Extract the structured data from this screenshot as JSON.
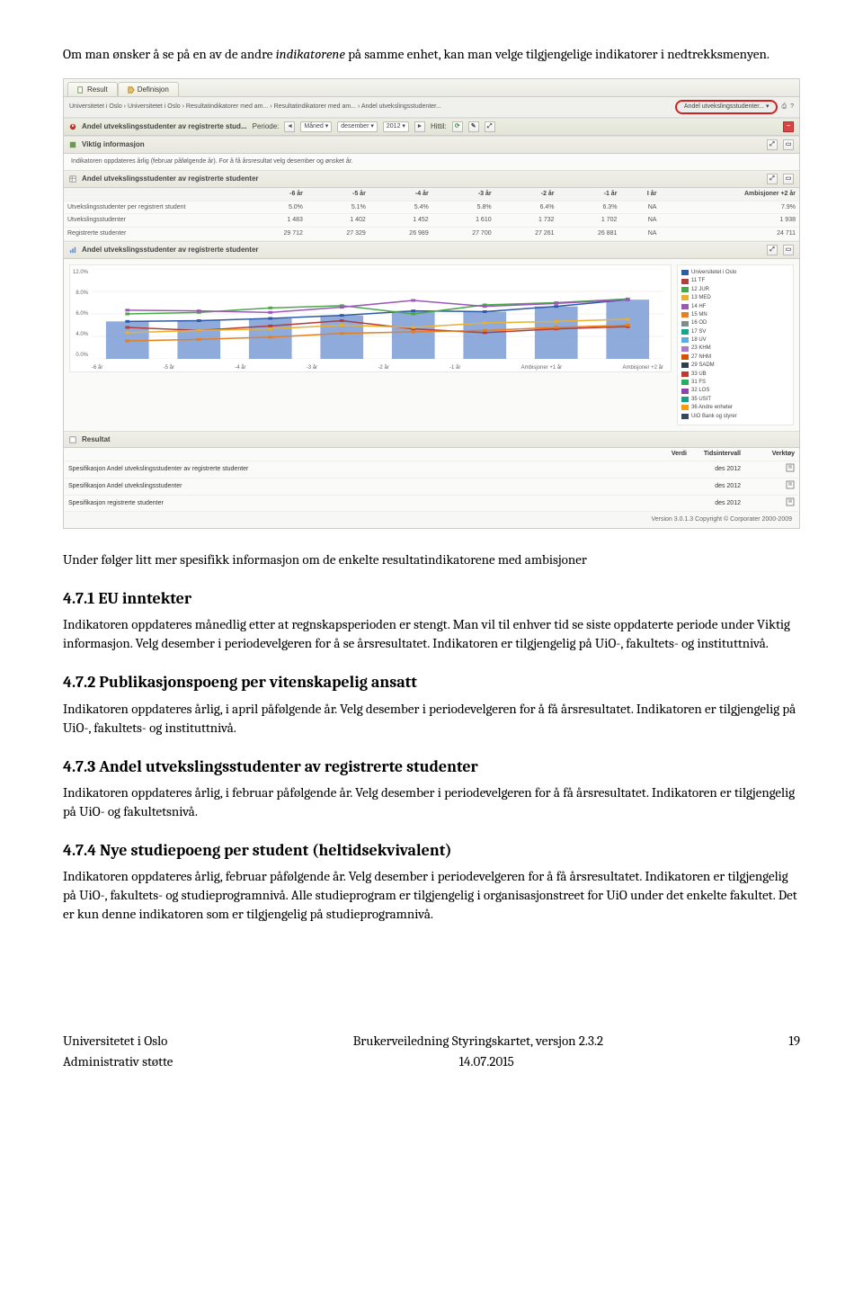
{
  "intro1a": "Om man ønsker å se på en av de andre ",
  "intro1b": "indikatorene",
  "intro1c": " på samme enhet, kan man velge tilgjengelige indikatorer i nedtrekksmenyen.",
  "intro2": "Under følger litt mer spesifikk informasjon om de enkelte resultatindikatorene med ambisjoner",
  "s1": {
    "h": "4.7.1 EU inntekter",
    "b": "Indikatoren oppdateres månedlig etter at regnskapsperioden er stengt. Man vil til enhver tid se siste oppdaterte periode under Viktig informasjon. Velg desember i periodevelgeren for å se årsresultatet. Indikatoren er tilgjengelig på UiO-, fakultets- og instituttnivå."
  },
  "s2": {
    "h": "4.7.2 Publikasjonspoeng per vitenskapelig ansatt",
    "b": "Indikatoren oppdateres årlig, i april påfølgende år. Velg desember i periodevelgeren for å få årsresultatet.  Indikatoren er tilgjengelig på UiO-, fakultets- og instituttnivå."
  },
  "s3": {
    "h": "4.7.3 Andel utvekslingsstudenter av registrerte studenter",
    "b": "Indikatoren oppdateres årlig, i februar påfølgende år. Velg desember i periodevelgeren for å få årsresultatet.  Indikatoren er tilgjengelig på UiO- og fakultetsnivå."
  },
  "s4": {
    "h": "4.7.4 Nye studiepoeng per student (heltidsekvivalent)",
    "b": "Indikatoren oppdateres årlig, februar påfølgende år. Velg desember i periodevelgeren for å få årsresultatet.  Indikatoren er tilgjengelig på UiO-, fakultets- og studieprogramnivå. Alle studieprogram er tilgjengelig i organisasjonstreet for UiO under det enkelte fakultet. Det er kun denne indikatoren som er tilgjengelig på studieprogramnivå."
  },
  "footer": {
    "left1": "Universitetet i Oslo",
    "mid1": "Brukerveiledning Styringskartet, versjon 2.3.2",
    "right1": "19",
    "left2": "Administrativ støtte",
    "mid2": "14.07.2015"
  },
  "ui": {
    "tabs": {
      "result": "Result",
      "definition": "Definisjon"
    },
    "breadcrumb": "Universitetet i Oslo › Universitetet i Oslo › Resultatindikatorer med am... › Resultatindikatorer med am... › Andel utvekslingsstudenter...",
    "highlighted_dropdown": "Andel utvekslingsstudenter...",
    "panel_main_title": "Andel utvekslingsstudenter av registrerte stud...",
    "period_label": "Periode:",
    "period_scope": "Måned",
    "period_month": "desember",
    "period_year": "2012",
    "period_suffix": "Hittil:",
    "info_header": "Viktig informasjon",
    "info_text": "Indikatoren oppdateres årlig (februar påfølgende år). For å få årsresultat velg desember og ønsket år.",
    "table_header": "Andel utvekslingsstudenter av registrerte studenter",
    "table": {
      "cols": [
        "",
        "-6 år",
        "-5 år",
        "-4 år",
        "-3 år",
        "-2 år",
        "-1 år",
        "I år",
        "Ambisjoner +2 år"
      ],
      "rows": [
        [
          "Utvekslingsstudenter per registrert student",
          "5.0%",
          "5.1%",
          "5.4%",
          "5.8%",
          "6.4%",
          "6.3%",
          "NA",
          "7.9%"
        ],
        [
          "Utvekslingsstudenter",
          "1 483",
          "1 402",
          "1 452",
          "1 610",
          "1 732",
          "1 702",
          "NA",
          "1 938"
        ],
        [
          "Registrerte studenter",
          "29 712",
          "27 329",
          "26 989",
          "27 700",
          "27 261",
          "26 881",
          "NA",
          "24 711"
        ]
      ]
    },
    "chart_header": "Andel utvekslingsstudenter av registrerte studenter",
    "chart": {
      "type": "bar-with-lines",
      "xlabels": [
        "-6 år",
        "-5 år",
        "-4 år",
        "-3 år",
        "-2 år",
        "-1 år",
        "Ambisjoner +1 år",
        "Ambisjoner +2 år"
      ],
      "ylim": [
        0,
        12
      ],
      "yticks": [
        "12.0%",
        "8.0%",
        "6.0%",
        "4.0%",
        "0.0%"
      ],
      "bars": {
        "color": "#6a8fd0",
        "values": [
          5.0,
          5.1,
          5.4,
          5.8,
          6.4,
          6.3,
          7.0,
          7.9
        ]
      },
      "lines": [
        {
          "label": "Universitetet i Oslo",
          "color": "#2e5aa8",
          "values": [
            5.0,
            5.1,
            5.4,
            5.8,
            6.4,
            6.3,
            7.0,
            7.9
          ]
        },
        {
          "label": "11 TF",
          "color": "#b33c3c",
          "values": [
            4.2,
            3.8,
            4.4,
            5.1,
            4.0,
            3.5,
            4.0,
            4.3
          ]
        },
        {
          "label": "12 JUR",
          "color": "#4aa84a",
          "values": [
            6.0,
            6.2,
            6.8,
            7.1,
            6.0,
            7.2,
            7.5,
            8.0
          ]
        },
        {
          "label": "13 MED",
          "color": "#e8b030",
          "values": [
            3.5,
            3.8,
            4.0,
            4.5,
            4.2,
            4.8,
            5.0,
            5.3
          ]
        },
        {
          "label": "14 HF",
          "color": "#9b59b6",
          "values": [
            6.5,
            6.4,
            6.2,
            6.9,
            7.8,
            7.0,
            7.4,
            7.9
          ]
        },
        {
          "label": "15 MN",
          "color": "#e67e22",
          "values": [
            2.4,
            2.6,
            2.9,
            3.4,
            3.6,
            3.8,
            4.2,
            4.5
          ]
        }
      ],
      "legend": [
        {
          "label": "Universitetet i Oslo",
          "color": "#2e5aa8"
        },
        {
          "label": "11 TF",
          "color": "#b33c3c"
        },
        {
          "label": "12 JUR",
          "color": "#4aa84a"
        },
        {
          "label": "13 MED",
          "color": "#e8b030"
        },
        {
          "label": "14 HF",
          "color": "#9b59b6"
        },
        {
          "label": "15 MN",
          "color": "#e67e22"
        },
        {
          "label": "16 OD",
          "color": "#7f8c8d"
        },
        {
          "label": "17 SV",
          "color": "#17a589"
        },
        {
          "label": "18 UV",
          "color": "#5dade2"
        },
        {
          "label": "23 KHM",
          "color": "#af7ac5"
        },
        {
          "label": "27 NHM",
          "color": "#d35400"
        },
        {
          "label": "29 SADM",
          "color": "#2c3e50"
        },
        {
          "label": "33 UB",
          "color": "#c0392b"
        },
        {
          "label": "31 FS",
          "color": "#27ae60"
        },
        {
          "label": "32 LOS",
          "color": "#8e44ad"
        },
        {
          "label": "35 USIT",
          "color": "#16a085"
        },
        {
          "label": "36 Andre enheter",
          "color": "#f39c12"
        },
        {
          "label": "UiO Bank og styrer",
          "color": "#34495e"
        }
      ],
      "grid_color": "#e6e6e0",
      "background_color": "#ffffff"
    },
    "result_panel": "Resultat",
    "result_cols": [
      "",
      "Verdi",
      "Tidsintervall",
      "Verktøy"
    ],
    "result_rows": [
      [
        "Spesifikasjon Andel utvekslingsstudenter av registrerte studenter",
        "",
        "des 2012",
        ""
      ],
      [
        "Spesifikasjon Andel utvekslingsstudenter",
        "",
        "des 2012",
        ""
      ],
      [
        "Spesifikasjon registrerte studenter",
        "",
        "des 2012",
        ""
      ]
    ],
    "copyright": "Version 3.0.1.3 Copyright © Corporater 2000-2009"
  }
}
